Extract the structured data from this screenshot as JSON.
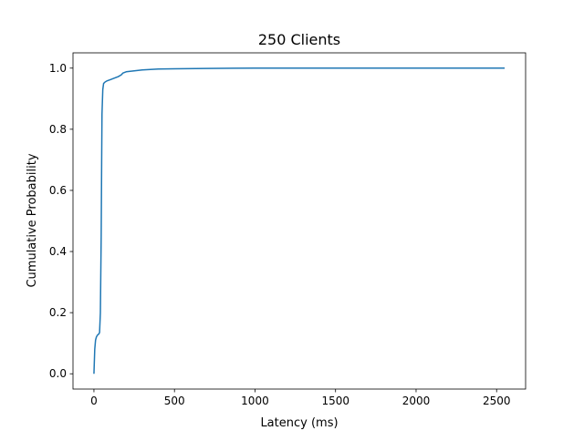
{
  "chart_data": {
    "type": "line",
    "title": "250 Clients",
    "xlabel": "Latency (ms)",
    "ylabel": "Cumulative Probability",
    "xlim": [
      -130,
      2680
    ],
    "ylim": [
      -0.05,
      1.05
    ],
    "grid": false,
    "xticks": [
      0,
      500,
      1000,
      1500,
      2000,
      2500
    ],
    "xtick_labels": [
      "0",
      "500",
      "1000",
      "1500",
      "2000",
      "2500"
    ],
    "yticks": [
      0.0,
      0.2,
      0.4,
      0.6,
      0.8,
      1.0
    ],
    "ytick_labels": [
      "0.0",
      "0.2",
      "0.4",
      "0.6",
      "0.8",
      "1.0"
    ],
    "series": [
      {
        "color": "#1f77b4",
        "x": [
          0,
          5,
          10,
          15,
          20,
          25,
          30,
          35,
          40,
          45,
          48,
          50,
          55,
          60,
          70,
          80,
          100,
          120,
          150,
          170,
          180,
          200,
          250,
          300,
          400,
          500,
          700,
          1000,
          1500,
          2000,
          2550
        ],
        "y": [
          0.0,
          0.08,
          0.11,
          0.12,
          0.125,
          0.128,
          0.13,
          0.135,
          0.2,
          0.45,
          0.7,
          0.85,
          0.93,
          0.95,
          0.955,
          0.958,
          0.962,
          0.966,
          0.972,
          0.978,
          0.984,
          0.988,
          0.991,
          0.994,
          0.997,
          0.998,
          0.999,
          1.0,
          1.0,
          1.0,
          1.0
        ]
      }
    ]
  }
}
